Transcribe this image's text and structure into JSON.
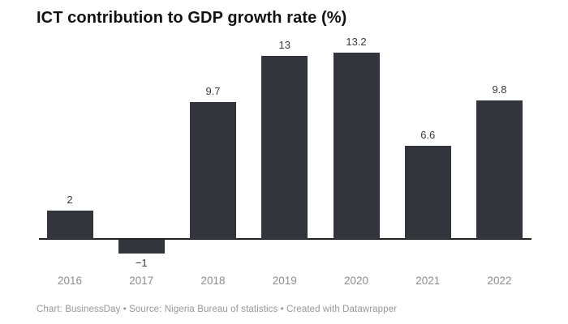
{
  "chart_data": {
    "type": "bar",
    "title": "ICT contribution to GDP growth rate (%)",
    "categories": [
      "2016",
      "2017",
      "2018",
      "2019",
      "2020",
      "2021",
      "2022"
    ],
    "values": [
      2,
      -1,
      9.7,
      13,
      13.2,
      6.6,
      9.8
    ],
    "value_labels": [
      "2",
      "−1",
      "9.7",
      "13",
      "13.2",
      "6.6",
      "9.8"
    ],
    "xlabel": "",
    "ylabel": "",
    "ylim": [
      -1.5,
      13.5
    ],
    "grid": "off",
    "legend": "none",
    "orientation": "vertical",
    "data_labels": "on"
  },
  "colors": {
    "bar_fill": "#32363c",
    "axis_line": "#222222",
    "value_label_text": "#3a3a3a",
    "year_label_text": "#8e8e8e",
    "title_text": "#121212",
    "attribution_text": "#979797",
    "background": "#ffffff"
  },
  "footer": {
    "text": "Chart: BusinessDay • Source: Nigeria Bureau of statistics • Created with Datawrapper"
  }
}
